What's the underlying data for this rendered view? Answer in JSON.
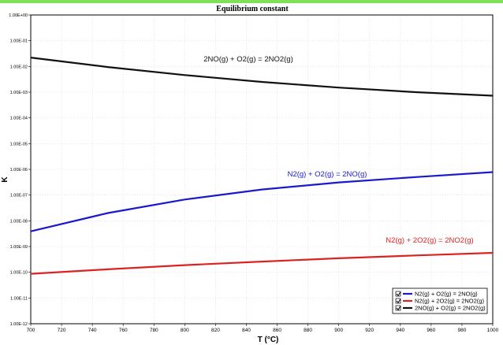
{
  "theme": {
    "accent": "#7fe05a"
  },
  "chart_data": {
    "type": "line",
    "title": "Equilibrium constant",
    "xlabel": "T (°C)",
    "ylabel": "K",
    "xlim": [
      700,
      1000
    ],
    "ylim": [
      1e-12,
      1
    ],
    "yscale": "log",
    "grid": true,
    "legend": "bottom-right",
    "x_ticks": [
      "700",
      "720",
      "740",
      "760",
      "780",
      "800",
      "820",
      "840",
      "860",
      "880",
      "900",
      "920",
      "940",
      "960",
      "980",
      "1000"
    ],
    "y_ticks": [
      "1.00E+00",
      "1.00E-01",
      "1.00E-02",
      "1.00E-03",
      "1.00E-04",
      "1.00E-05",
      "1.00E-06",
      "1.00E-07",
      "1.00E-08",
      "1.00E-09",
      "1.00E-10",
      "1.00E-11",
      "1.00E-12"
    ],
    "series": [
      {
        "name": "N2(g) + O2(g) = 2NO(g)",
        "color": "#1a1acc",
        "x": [
          700,
          750,
          800,
          850,
          900,
          950,
          1000
        ],
        "y": [
          3.9e-09,
          2e-08,
          6.7e-08,
          1.65e-07,
          3.1e-07,
          5e-07,
          7.8e-07
        ]
      },
      {
        "name": "N2(g) + 2O2(g) = 2NO2(g)",
        "color": "#dd2222",
        "x": [
          700,
          750,
          800,
          850,
          900,
          950,
          1000
        ],
        "y": [
          8.7e-11,
          1.3e-10,
          1.9e-10,
          2.6e-10,
          3.5e-10,
          4.5e-10,
          5.7e-10
        ]
      },
      {
        "name": "2NO(g) + O2(g) = 2NO2(g)",
        "color": "#111111",
        "x": [
          700,
          750,
          800,
          850,
          900,
          950,
          1000
        ],
        "y": [
          0.022,
          0.0095,
          0.0046,
          0.0025,
          0.0015,
          0.001,
          0.00073
        ]
      }
    ],
    "annotations": [
      {
        "text": "2NO(g) + O2(g) = 2NO2(g)",
        "color": "#111111"
      },
      {
        "text": "N2(g) + O2(g) = 2NO(g)",
        "color": "#1a1acc"
      },
      {
        "text": "N2(g) + 2O2(g) = 2NO2(g)",
        "color": "#dd2222"
      }
    ]
  }
}
